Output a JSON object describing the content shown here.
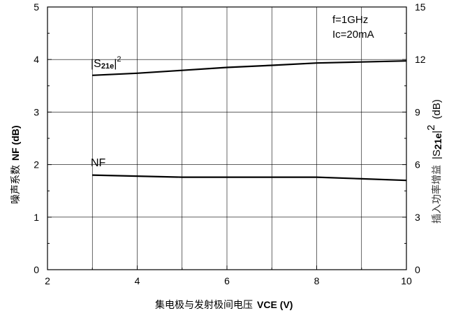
{
  "chart_data": {
    "type": "line",
    "xlim": [
      2,
      10
    ],
    "x_ticks": [
      2,
      4,
      6,
      8,
      10
    ],
    "ylim_left": [
      0,
      5
    ],
    "y_ticks_left": [
      0,
      1,
      2,
      3,
      4,
      5
    ],
    "ylim_right": [
      0,
      15
    ],
    "y_ticks_right": [
      0,
      3,
      6,
      9,
      12,
      15
    ],
    "grid": true,
    "xlabel": {
      "cjk": "集电极与发射极间电压",
      "latin": "V",
      "sub": "CE",
      "unit": "(V)"
    },
    "ylabel_left": {
      "cjk": "噪声系数",
      "latin": "NF (dB)"
    },
    "ylabel_right": {
      "cjk": "插入功率增益",
      "latin": "|S",
      "sub": "21e",
      "close": "|",
      "sup": "2",
      "unit": "(dB)"
    },
    "annotations": [
      "f=1GHz",
      "Ic=20mA"
    ],
    "series": [
      {
        "name_parts": {
          "open": "|S",
          "sub": "21e",
          "close": "|",
          "sup": "2"
        },
        "axis": "right",
        "x": [
          3,
          4,
          5,
          6,
          7,
          8,
          9,
          10
        ],
        "y": [
          11.1,
          11.22,
          11.38,
          11.55,
          11.67,
          11.8,
          11.86,
          11.92
        ]
      },
      {
        "name": "NF",
        "axis": "left",
        "x": [
          3,
          4,
          5,
          6,
          7,
          8,
          9,
          10
        ],
        "y": [
          1.8,
          1.78,
          1.76,
          1.76,
          1.76,
          1.76,
          1.73,
          1.7
        ]
      }
    ]
  }
}
